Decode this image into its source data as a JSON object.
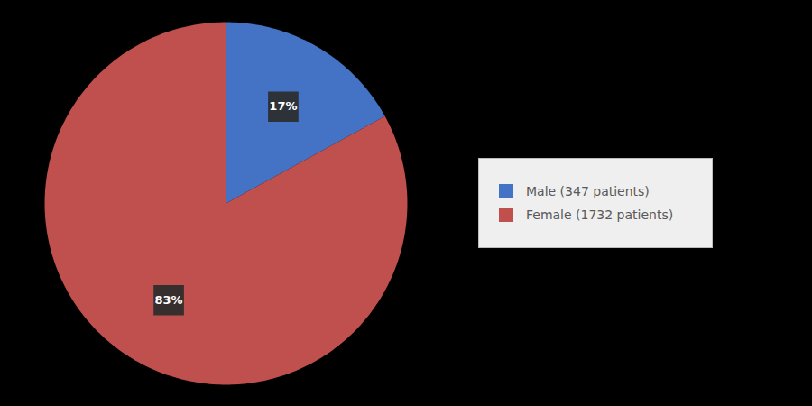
{
  "chart_data": {
    "type": "pie",
    "categories": [
      "Male (347 patients)",
      "Female (1732 patients)"
    ],
    "values": [
      17,
      83
    ],
    "value_labels": [
      "17%",
      "83%"
    ],
    "colors": [
      "#4472C4",
      "#C0504D"
    ],
    "data_labels": true,
    "legend": "right"
  }
}
